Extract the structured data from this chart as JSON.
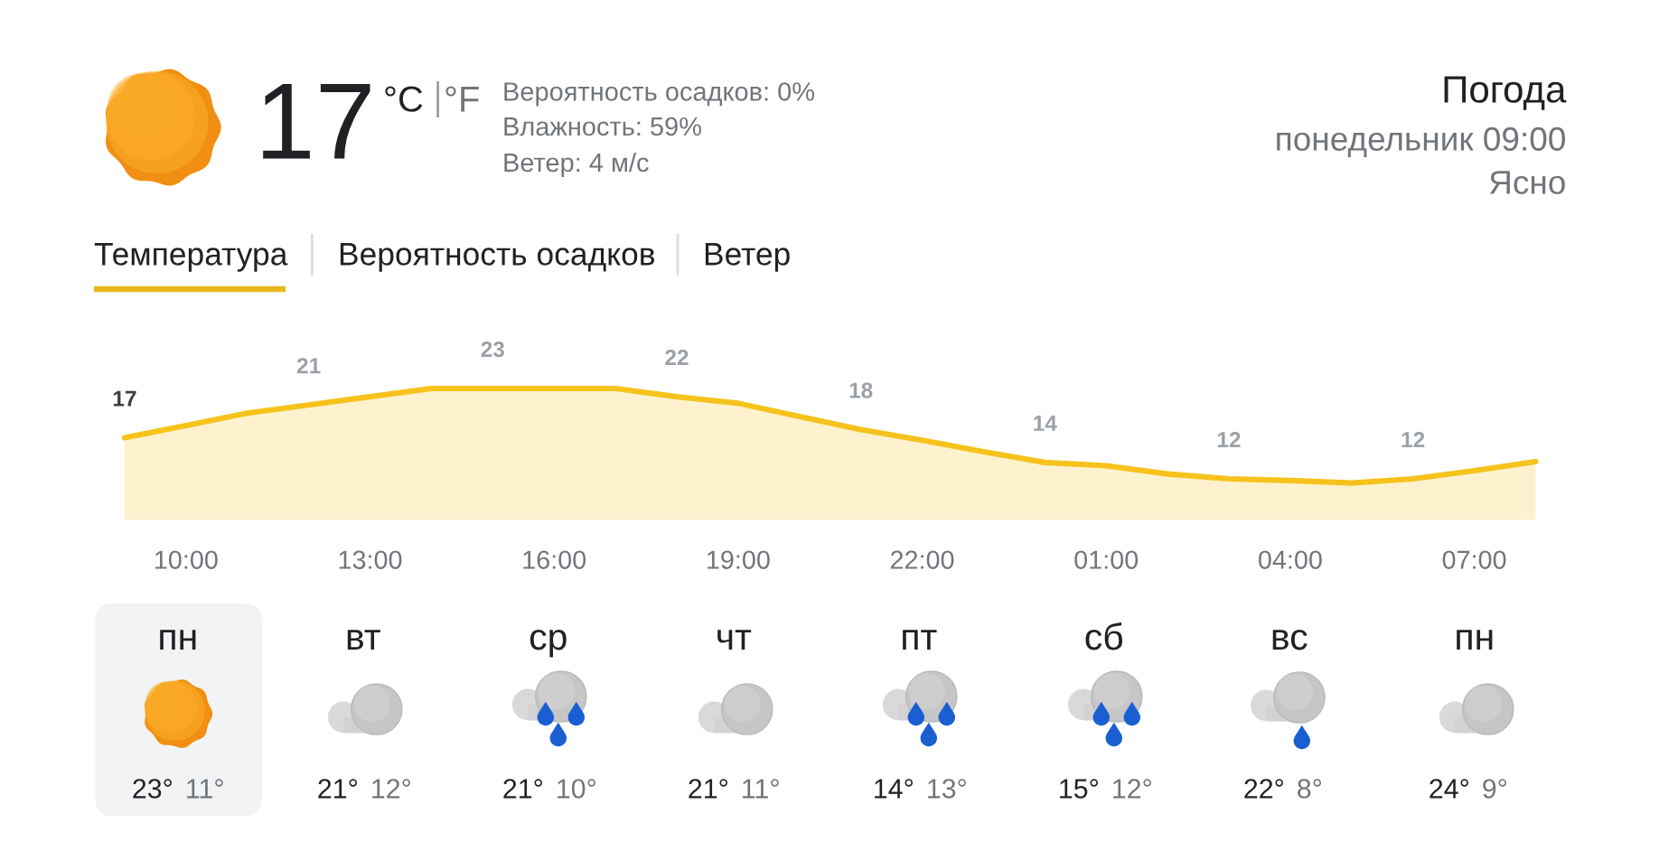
{
  "chart_data": {
    "type": "area",
    "title": "Погода",
    "subtitle": "понедельник 09:00",
    "annotations": [
      "Ясно",
      "17",
      "°C",
      "°F",
      "Вероятность осадков: 0%",
      "Влажность: 59%",
      "Ветер: 4 м/с",
      "Температура",
      "Вероятность осадков",
      "Ветер",
      "пн",
      "23°",
      "11°",
      "вт",
      "21°",
      "12°",
      "ср",
      "21°",
      "10°",
      "чт",
      "21°",
      "11°",
      "пт",
      "14°",
      "13°",
      "сб",
      "15°",
      "12°",
      "вс",
      "22°",
      "8°",
      "пн",
      "24°",
      "9°"
    ],
    "categories": [
      null,
      "10:00",
      null,
      null,
      "13:00",
      null,
      null,
      "16:00",
      null,
      null,
      "19:00",
      null,
      null,
      "22:00",
      null,
      null,
      "01:00",
      null,
      null,
      "04:00",
      null,
      null,
      "07:00",
      null
    ],
    "series": [
      {
        "color": "#f6c21c",
        "values": [
          17,
          18.5,
          20,
          21,
          22,
          23,
          23,
          23,
          23,
          22,
          21.2,
          19.6,
          18,
          16.7,
          15.3,
          14,
          13.6,
          12.6,
          12,
          11.8,
          11.5,
          12,
          13,
          14.1
        ],
        "value_labels": [
          "17",
          null,
          null,
          "21",
          null,
          null,
          "23",
          null,
          null,
          "22",
          null,
          null,
          "18",
          null,
          null,
          "14",
          null,
          null,
          "12",
          null,
          null,
          "12",
          null,
          null
        ]
      }
    ],
    "tick_labels": "x"
  }
}
